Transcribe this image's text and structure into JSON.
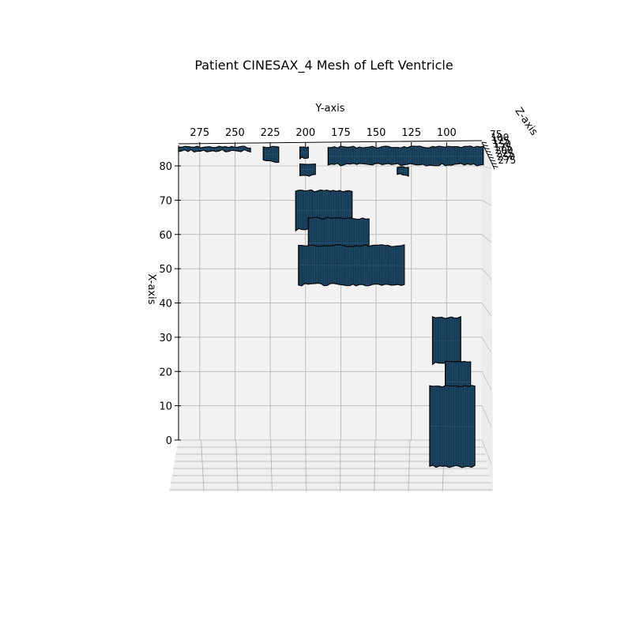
{
  "chart_data": {
    "type": "surface3d",
    "title": "Patient CINESAX_4 Mesh of Left Ventricle",
    "xlabel": "X-axis",
    "ylabel": "Y-axis",
    "zlabel": "Z-axis",
    "x_ticks": [
      "0",
      "10",
      "20",
      "30",
      "40",
      "50",
      "60",
      "70",
      "80"
    ],
    "y_ticks": [
      "275",
      "250",
      "225",
      "200",
      "175",
      "150",
      "125",
      "100"
    ],
    "z_ticks": [
      "75",
      "100",
      "125",
      "150",
      "175",
      "200",
      "225",
      "250",
      "275"
    ],
    "xlim": [
      0,
      86
    ],
    "ylim": [
      290,
      75
    ],
    "zlim": [
      75,
      285
    ],
    "grid": true,
    "view": "top-down (elevation ≈ 90°)",
    "surface_color": "#1f4e6e",
    "edge_color": "#000000",
    "pane_color": "#f2f2f2",
    "grid_color": "#b0b0b0",
    "mesh_regions": [
      {
        "x": [
          84,
          88
        ],
        "y": [
          290,
          239
        ]
      },
      {
        "x": [
          81,
          88
        ],
        "y": [
          230,
          219
        ]
      },
      {
        "x": [
          82,
          88
        ],
        "y": [
          204,
          198
        ]
      },
      {
        "x": [
          77,
          81
        ],
        "y": [
          204,
          193
        ]
      },
      {
        "x": [
          80,
          88
        ],
        "y": [
          184,
          74
        ]
      },
      {
        "x": [
          77,
          80
        ],
        "y": [
          135,
          127
        ]
      },
      {
        "x": [
          61,
          73
        ],
        "y": [
          207,
          167
        ]
      },
      {
        "x": [
          50,
          65
        ],
        "y": [
          198,
          155
        ]
      },
      {
        "x": [
          45,
          57
        ],
        "y": [
          205,
          130
        ]
      },
      {
        "x": [
          22,
          36
        ],
        "y": [
          110,
          90
        ]
      },
      {
        "x": [
          11,
          23
        ],
        "y": [
          101,
          83
        ]
      },
      {
        "x": [
          -8,
          16
        ],
        "y": [
          112,
          80
        ]
      }
    ]
  }
}
